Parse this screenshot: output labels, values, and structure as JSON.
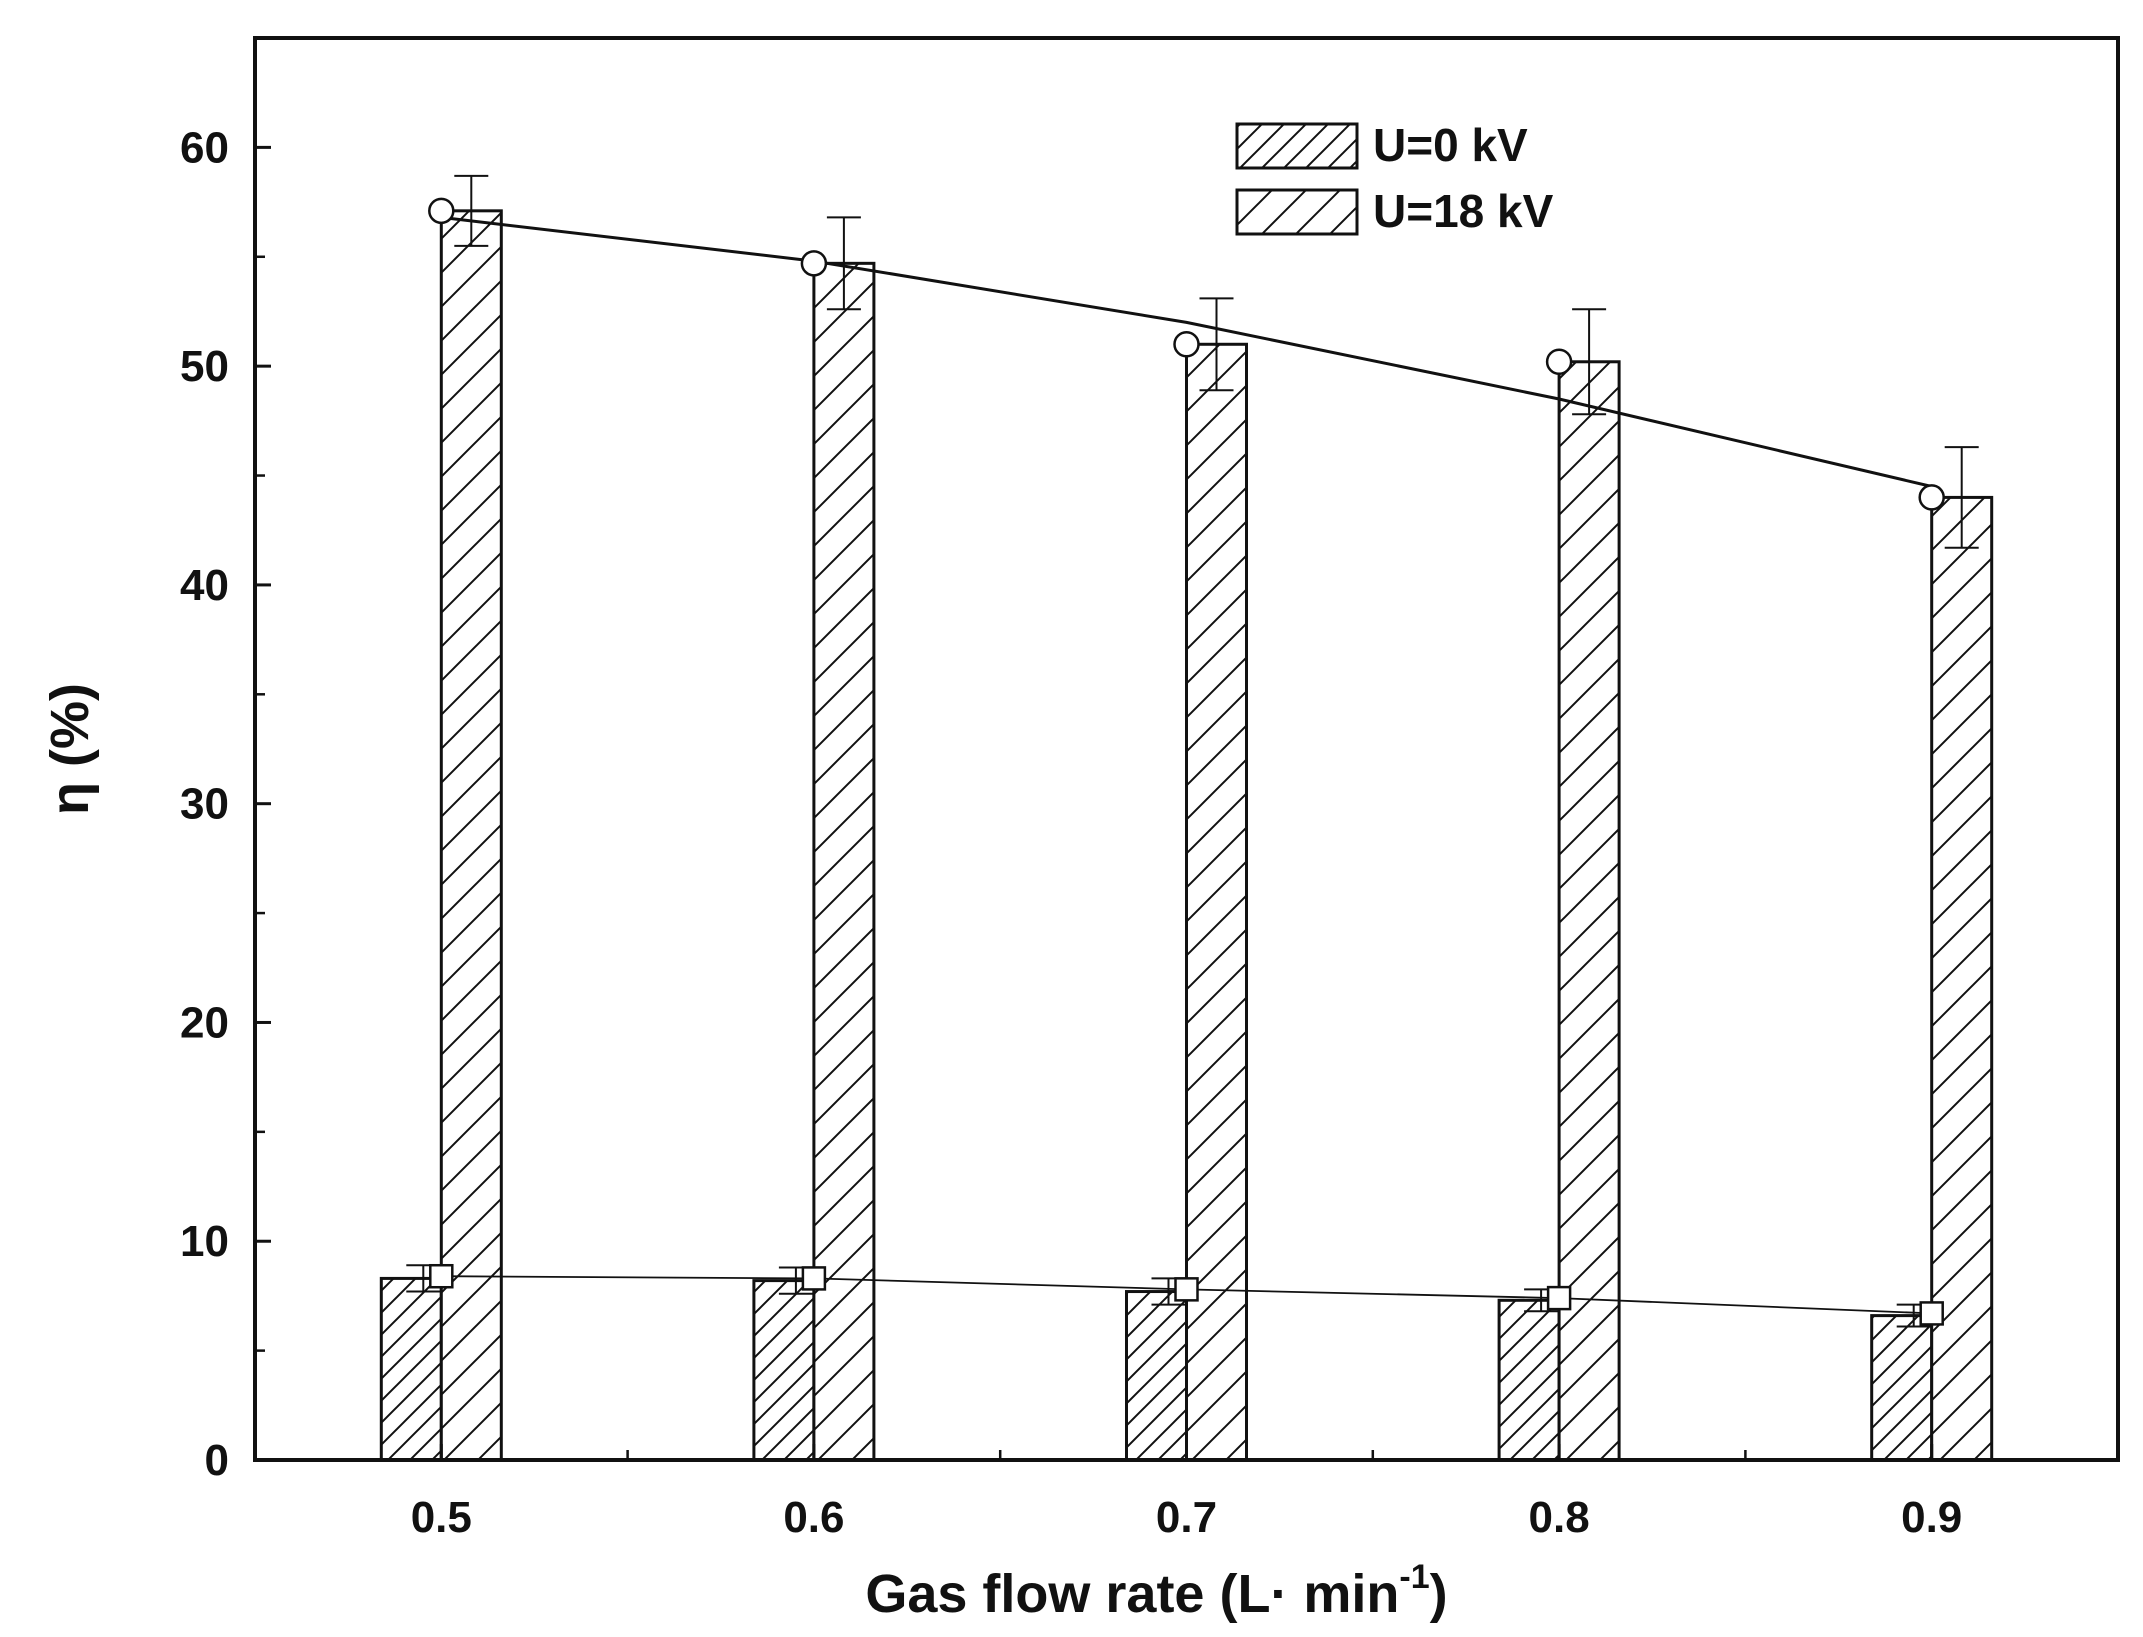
{
  "chart_data": {
    "type": "bar",
    "categories": [
      "0.5",
      "0.6",
      "0.7",
      "0.8",
      "0.9"
    ],
    "x": [
      0.5,
      0.6,
      0.7,
      0.8,
      0.9
    ],
    "series": [
      {
        "name": "U=0 kV",
        "values": [
          8.3,
          8.2,
          7.7,
          7.3,
          6.6
        ],
        "errors": [
          0.6,
          0.6,
          0.6,
          0.5,
          0.5
        ],
        "line_values": [
          8.4,
          8.3,
          7.8,
          7.4,
          6.7
        ],
        "line_marker": "square"
      },
      {
        "name": "U=18 kV",
        "values": [
          57.1,
          54.7,
          51.0,
          50.2,
          44.0
        ],
        "errors": [
          1.6,
          2.1,
          2.1,
          2.4,
          2.3
        ],
        "line_values": [
          56.8,
          54.8,
          52.0,
          48.5,
          44.5
        ],
        "markers": [
          57.1,
          54.7,
          51.0,
          50.2,
          44.0
        ],
        "line_marker": "circle"
      }
    ],
    "xlabel_main": "Gas flow rate (L· min",
    "xlabel_sup": "-1",
    "xlabel_close": ")",
    "ylabel": "η (%)",
    "ylim": [
      0,
      65
    ],
    "xlim": [
      0.45,
      0.95
    ],
    "yticks": [
      0,
      10,
      20,
      30,
      40,
      50,
      60
    ],
    "legend_position": "top-center",
    "grid": false,
    "colors": {
      "stroke": "#111111",
      "background": "#ffffff",
      "marker_fill": "#ffffff"
    }
  }
}
